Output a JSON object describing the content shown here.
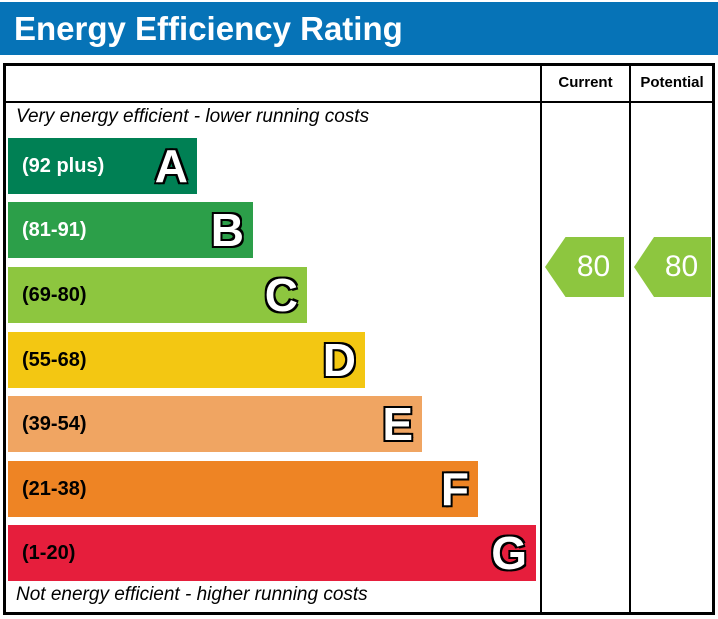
{
  "title": "Energy Efficiency Rating",
  "columns": {
    "current": "Current",
    "potential": "Potential"
  },
  "captions": {
    "top": "Very energy efficient - lower running costs",
    "bottom": "Not energy efficient - higher running costs"
  },
  "bands": [
    {
      "letter": "A",
      "range": "(92 plus)",
      "color": "#008054",
      "text_color": "#ffffff"
    },
    {
      "letter": "B",
      "range": "(81-91)",
      "color": "#2c9f49",
      "text_color": "#ffffff"
    },
    {
      "letter": "C",
      "range": "(69-80)",
      "color": "#8dc63f",
      "text_color": "#000000"
    },
    {
      "letter": "D",
      "range": "(55-68)",
      "color": "#f3c712",
      "text_color": "#000000"
    },
    {
      "letter": "E",
      "range": "(39-54)",
      "color": "#f0a562",
      "text_color": "#000000"
    },
    {
      "letter": "F",
      "range": "(21-38)",
      "color": "#ee8424",
      "text_color": "#000000"
    },
    {
      "letter": "G",
      "range": "(1-20)",
      "color": "#e61e3c",
      "text_color": "#000000"
    }
  ],
  "ratings": {
    "current": {
      "value": "80",
      "color": "#8dc63f"
    },
    "potential": {
      "value": "80",
      "color": "#8dc63f"
    }
  },
  "colors": {
    "header_blue": "#0673b7"
  },
  "chart_data": {
    "type": "bar",
    "title": "Energy Efficiency Rating",
    "categories": [
      "A",
      "B",
      "C",
      "D",
      "E",
      "F",
      "G"
    ],
    "ranges": [
      "92 plus",
      "81-91",
      "69-80",
      "55-68",
      "39-54",
      "21-38",
      "1-20"
    ],
    "band_colors": [
      "#008054",
      "#2c9f49",
      "#8dc63f",
      "#f3c712",
      "#f0a562",
      "#ee8424",
      "#e61e3c"
    ],
    "bar_widths_relative": [
      0.36,
      0.46,
      0.57,
      0.68,
      0.78,
      0.89,
      1.0
    ],
    "current": 80,
    "potential": 80,
    "current_band": "C",
    "potential_band": "C",
    "legend_position": "none",
    "grid": false
  }
}
